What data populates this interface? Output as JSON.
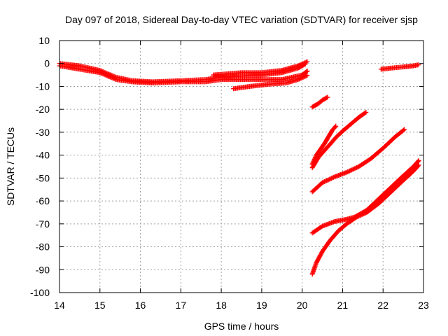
{
  "chart_data": {
    "type": "scatter",
    "title": "Day 097 of 2018, Sidereal Day-to-day VTEC variation (SDTVAR) for receiver sjsp",
    "xlabel": "GPS time / hours",
    "ylabel": "SDTVAR / TECUs",
    "xlim": [
      14,
      23
    ],
    "ylim": [
      -100,
      10
    ],
    "xticks": [
      "14",
      "15",
      "16",
      "17",
      "18",
      "19",
      "20",
      "21",
      "22",
      "23"
    ],
    "yticks": [
      "10",
      "0",
      "-10",
      "-20",
      "-30",
      "-40",
      "-50",
      "-60",
      "-70",
      "-80",
      "-90",
      "-100"
    ],
    "grid": true,
    "marker": "plus",
    "color": "#ff0000",
    "series": [
      {
        "points": [
          [
            14.0,
            0
          ],
          [
            14.5,
            -1
          ],
          [
            15.0,
            -3
          ],
          [
            15.4,
            -6
          ],
          [
            15.8,
            -7.5
          ],
          [
            16.3,
            -8
          ],
          [
            17.0,
            -7.5
          ],
          [
            17.6,
            -7
          ],
          [
            18.0,
            -6
          ],
          [
            18.5,
            -5.5
          ],
          [
            19.0,
            -5
          ],
          [
            19.5,
            -4
          ],
          [
            19.9,
            -2
          ],
          [
            20.1,
            0
          ]
        ]
      },
      {
        "points": [
          [
            14.0,
            -1
          ],
          [
            14.5,
            -2.5
          ],
          [
            15.0,
            -4
          ],
          [
            15.4,
            -7
          ],
          [
            15.8,
            -8
          ],
          [
            16.3,
            -8.5
          ],
          [
            17.0,
            -8
          ],
          [
            17.6,
            -8
          ],
          [
            18.0,
            -7
          ],
          [
            18.5,
            -7
          ],
          [
            19.0,
            -7
          ],
          [
            19.5,
            -7
          ],
          [
            20.0,
            -5
          ],
          [
            20.15,
            -3
          ]
        ]
      },
      {
        "points": [
          [
            17.8,
            -5
          ],
          [
            18.5,
            -4
          ],
          [
            19.0,
            -4
          ],
          [
            19.5,
            -3
          ],
          [
            19.9,
            -1
          ],
          [
            20.15,
            1
          ]
        ]
      },
      {
        "points": [
          [
            18.3,
            -11
          ],
          [
            18.7,
            -10
          ],
          [
            19.2,
            -9
          ],
          [
            19.6,
            -8.5
          ],
          [
            19.9,
            -7
          ],
          [
            20.15,
            -5
          ]
        ]
      },
      {
        "points": [
          [
            20.25,
            -19
          ],
          [
            20.4,
            -17.5
          ],
          [
            20.5,
            -16
          ],
          [
            20.65,
            -14.5
          ]
        ]
      },
      {
        "points": [
          [
            20.25,
            -44
          ],
          [
            20.35,
            -40
          ],
          [
            20.45,
            -37.5
          ],
          [
            20.55,
            -35
          ],
          [
            20.65,
            -32
          ],
          [
            20.75,
            -29
          ],
          [
            20.85,
            -27
          ]
        ]
      },
      {
        "points": [
          [
            20.25,
            -45.5
          ],
          [
            20.4,
            -41
          ],
          [
            20.55,
            -38
          ],
          [
            20.7,
            -35
          ],
          [
            20.85,
            -32
          ],
          [
            21.0,
            -29.5
          ],
          [
            21.2,
            -26.5
          ],
          [
            21.4,
            -23.5
          ],
          [
            21.6,
            -21
          ]
        ]
      },
      {
        "points": [
          [
            20.25,
            -56
          ],
          [
            20.5,
            -52
          ],
          [
            20.8,
            -49.5
          ],
          [
            21.1,
            -47.5
          ],
          [
            21.4,
            -45
          ],
          [
            21.7,
            -41.5
          ],
          [
            22.0,
            -37
          ],
          [
            22.3,
            -32
          ],
          [
            22.55,
            -28.5
          ]
        ]
      },
      {
        "points": [
          [
            20.25,
            -74
          ],
          [
            20.5,
            -71
          ],
          [
            20.8,
            -69
          ],
          [
            21.1,
            -68
          ],
          [
            21.3,
            -67
          ],
          [
            21.6,
            -64
          ],
          [
            21.9,
            -59
          ],
          [
            22.2,
            -54
          ],
          [
            22.5,
            -49
          ],
          [
            22.75,
            -45
          ],
          [
            22.9,
            -42
          ]
        ]
      },
      {
        "points": [
          [
            20.25,
            -92
          ],
          [
            20.35,
            -87
          ],
          [
            20.5,
            -82
          ],
          [
            20.7,
            -77
          ],
          [
            20.9,
            -73
          ],
          [
            21.1,
            -70
          ],
          [
            21.35,
            -67
          ],
          [
            21.6,
            -65
          ],
          [
            21.9,
            -61
          ],
          [
            22.2,
            -56
          ],
          [
            22.5,
            -51
          ],
          [
            22.75,
            -47
          ],
          [
            22.9,
            -44
          ]
        ]
      },
      {
        "points": [
          [
            21.95,
            -2.5
          ],
          [
            22.2,
            -2
          ],
          [
            22.5,
            -1.5
          ],
          [
            22.75,
            -1
          ],
          [
            22.9,
            -0.5
          ]
        ]
      }
    ]
  }
}
